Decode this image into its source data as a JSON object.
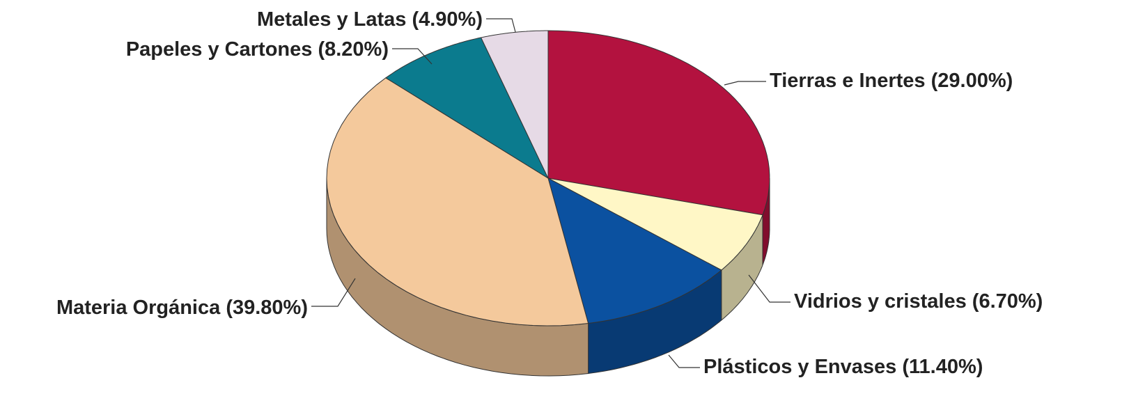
{
  "chart_data": {
    "type": "pie3d",
    "categories": [
      "Tierras e Inertes",
      "Vidrios y cristales",
      "Plásticos y Envases",
      "Materia Orgánica",
      "Papeles y Cartones",
      "Metales y Latas"
    ],
    "values": [
      29.0,
      6.7,
      11.4,
      39.8,
      8.2,
      4.9
    ],
    "value_labels": [
      "(29.00%)",
      "(6.70%)",
      "(11.40%)",
      "(39.80%)",
      "(8.20%)",
      "(4.90%)"
    ],
    "colors": [
      "#b3123f",
      "#fff7c6",
      "#0b51a0",
      "#f4c99c",
      "#0b7b8e",
      "#e6dae6"
    ]
  }
}
